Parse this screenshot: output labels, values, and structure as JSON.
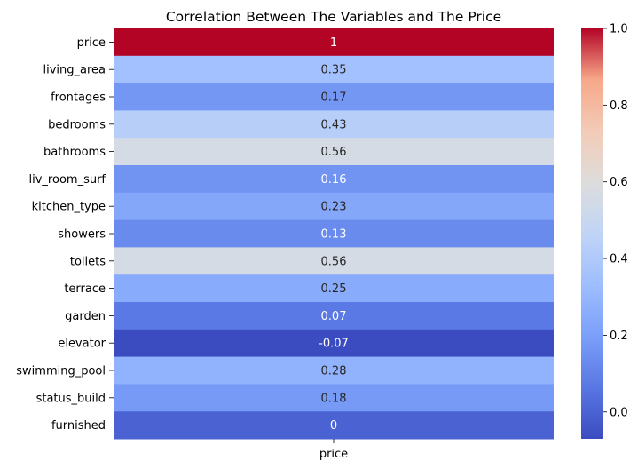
{
  "chart_data": {
    "type": "heatmap",
    "title": "Correlation Between The Variables and The Price",
    "xlabel": "",
    "ylabel": "",
    "columns": [
      "price"
    ],
    "rows": [
      {
        "label": "price",
        "value": 1,
        "annot": "1"
      },
      {
        "label": "living_area",
        "value": 0.35,
        "annot": "0.35"
      },
      {
        "label": "frontages",
        "value": 0.17,
        "annot": "0.17"
      },
      {
        "label": "bedrooms",
        "value": 0.43,
        "annot": "0.43"
      },
      {
        "label": "bathrooms",
        "value": 0.56,
        "annot": "0.56"
      },
      {
        "label": "liv_room_surf",
        "value": 0.16,
        "annot": "0.16"
      },
      {
        "label": "kitchen_type",
        "value": 0.23,
        "annot": "0.23"
      },
      {
        "label": "showers",
        "value": 0.13,
        "annot": "0.13"
      },
      {
        "label": "toilets",
        "value": 0.56,
        "annot": "0.56"
      },
      {
        "label": "terrace",
        "value": 0.25,
        "annot": "0.25"
      },
      {
        "label": "garden",
        "value": 0.07,
        "annot": "0.07"
      },
      {
        "label": "elevator",
        "value": -0.07,
        "annot": "-0.07"
      },
      {
        "label": "swimming_pool",
        "value": 0.28,
        "annot": "0.28"
      },
      {
        "label": "status_build",
        "value": 0.18,
        "annot": "0.18"
      },
      {
        "label": "furnished",
        "value": 0,
        "annot": "0"
      }
    ],
    "colormap": "coolwarm",
    "colorbar": {
      "range": [
        -0.07,
        1.0
      ],
      "ticks": [
        0.0,
        0.2,
        0.4,
        0.6,
        0.8,
        1.0
      ],
      "tick_labels": [
        "0.0",
        "0.2",
        "0.4",
        "0.6",
        "0.8",
        "1.0"
      ]
    }
  }
}
